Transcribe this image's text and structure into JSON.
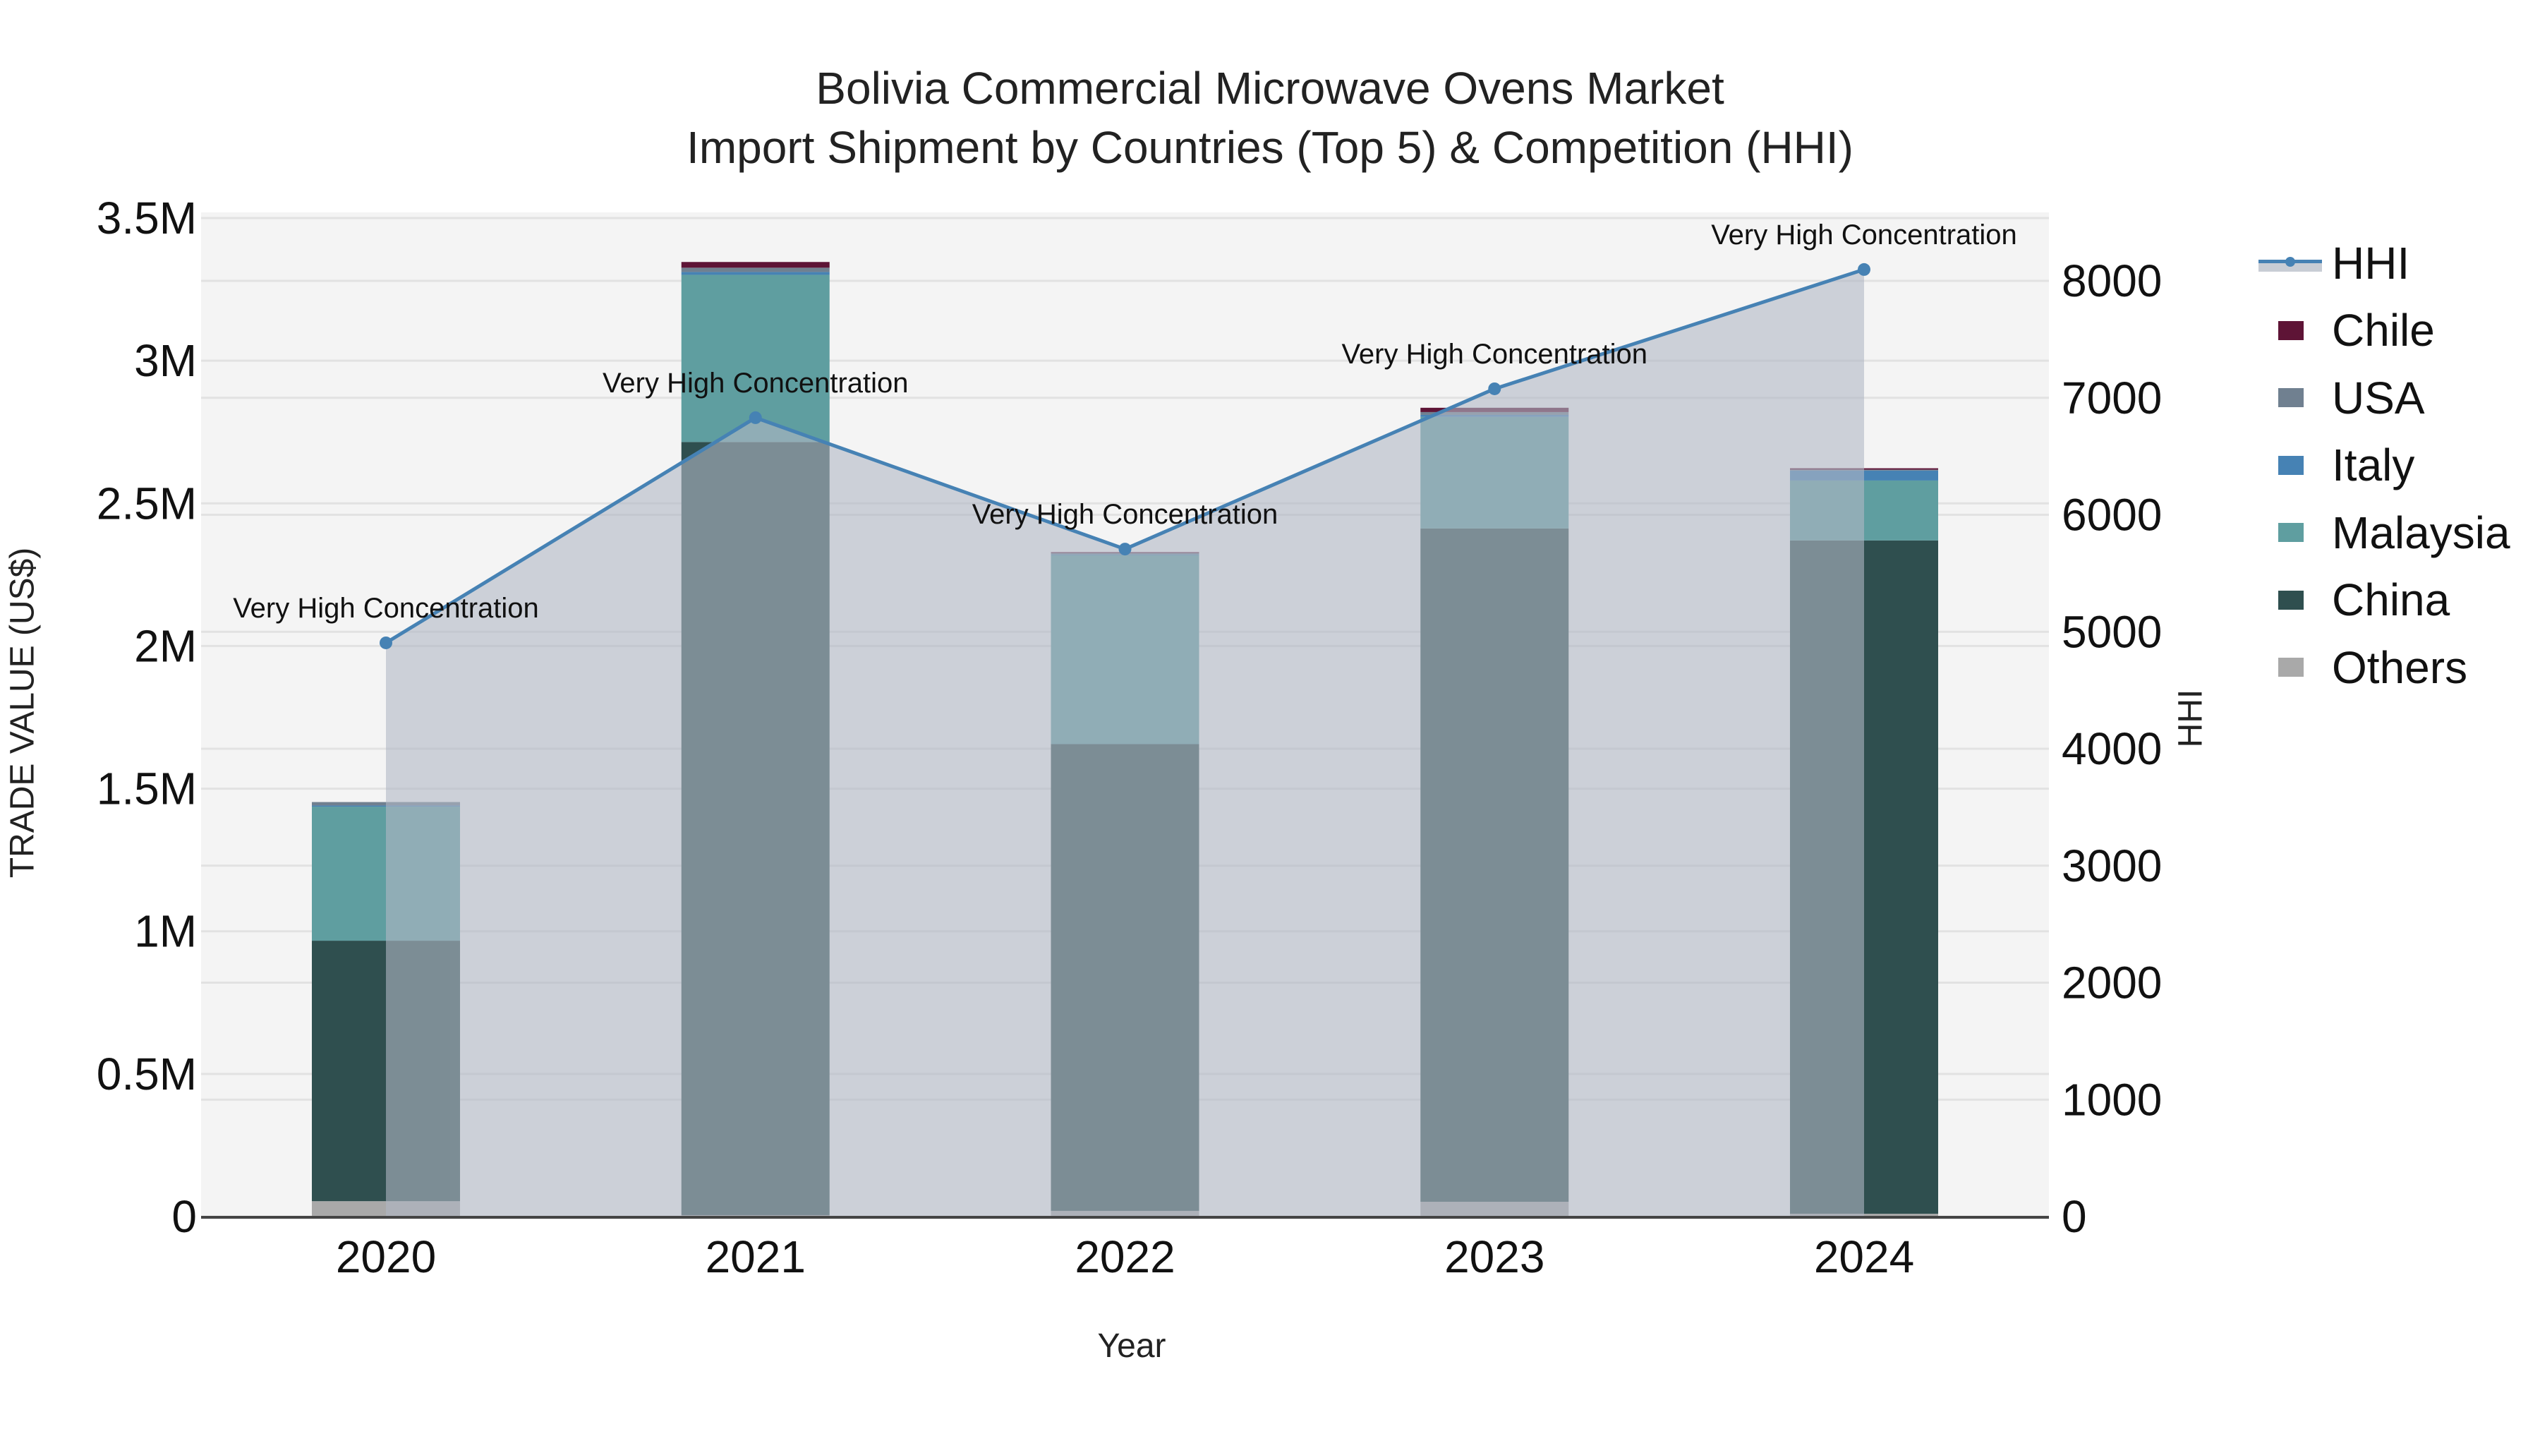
{
  "chart_data": {
    "type": "bar",
    "subtype": "stacked bar with secondary-axis line/area",
    "title": "Bolivia Commercial Microwave Ovens Market",
    "subtitle": "Import Shipment by Countries (Top 5) & Competition (HHI)",
    "xlabel": "Year",
    "ylabel": "TRADE VALUE (US$)",
    "y2label": "HHI",
    "categories": [
      "2020",
      "2021",
      "2022",
      "2023",
      "2024"
    ],
    "ylim": [
      0,
      3500000
    ],
    "y2lim": [
      0,
      8500
    ],
    "y_ticks": [
      0,
      500000,
      1000000,
      1500000,
      2000000,
      2500000,
      3000000,
      3500000
    ],
    "y_tick_labels": [
      "0",
      "0.5M",
      "1M",
      "1.5M",
      "2M",
      "2.5M",
      "3M",
      "3.5M"
    ],
    "y2_ticks": [
      0,
      1000,
      2000,
      3000,
      4000,
      5000,
      6000,
      7000,
      8000
    ],
    "y2_tick_labels": [
      "0",
      "1000",
      "2000",
      "3000",
      "4000",
      "5000",
      "6000",
      "7000",
      "8000"
    ],
    "grid": true,
    "legend_position": "right",
    "series": [
      {
        "name": "Others",
        "color": "#a9a9a9",
        "values": [
          54000,
          5000,
          20000,
          52000,
          10000
        ]
      },
      {
        "name": "China",
        "color": "#2f4f4f",
        "values": [
          913000,
          2710000,
          1636000,
          2360000,
          2360000
        ]
      },
      {
        "name": "Malaysia",
        "color": "#5f9ea0",
        "values": [
          470000,
          586000,
          663000,
          391000,
          210000
        ]
      },
      {
        "name": "Italy",
        "color": "#4682b4",
        "values": [
          4000,
          10000,
          2000,
          7000,
          35000
        ]
      },
      {
        "name": "USA",
        "color": "#708090",
        "values": [
          12000,
          15000,
          5000,
          10000,
          3000
        ]
      },
      {
        "name": "Chile",
        "color": "#5e1436",
        "values": [
          0,
          20000,
          3000,
          15000,
          5000
        ]
      }
    ],
    "line_series": {
      "name": "HHI",
      "axis": "y2",
      "color": "#4682b4",
      "fill_color": "#b0b8c5",
      "values": [
        4905,
        6830,
        5707,
        7077,
        8097
      ],
      "annotations": [
        "Very High Concentration",
        "Very High Concentration",
        "Very High Concentration",
        "Very High Concentration",
        "Very High Concentration"
      ]
    }
  },
  "legend": {
    "items": [
      {
        "label": "HHI",
        "kind": "line",
        "color": "#4682b4"
      },
      {
        "label": "Chile",
        "kind": "box",
        "color": "#5e1436"
      },
      {
        "label": "USA",
        "kind": "box",
        "color": "#708090"
      },
      {
        "label": "Italy",
        "kind": "box",
        "color": "#4682b4"
      },
      {
        "label": "Malaysia",
        "kind": "box",
        "color": "#5f9ea0"
      },
      {
        "label": "China",
        "kind": "box",
        "color": "#2f4f4f"
      },
      {
        "label": "Others",
        "kind": "box",
        "color": "#a9a9a9"
      }
    ]
  }
}
